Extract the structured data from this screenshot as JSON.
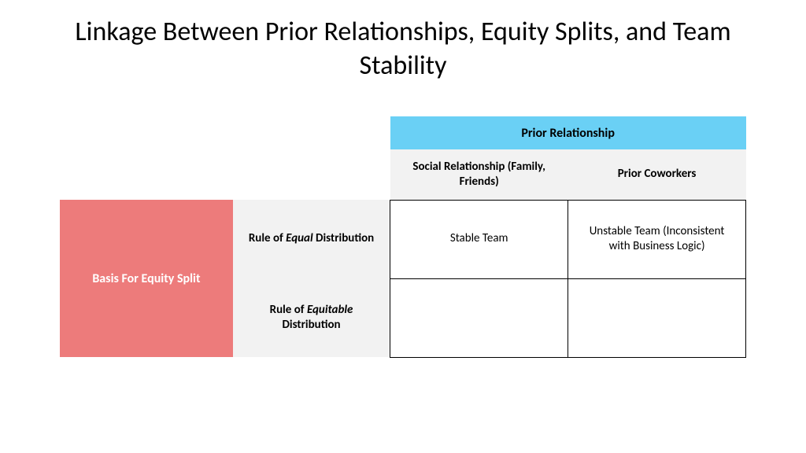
{
  "title": "Linkage Between Prior Relationships, Equity Splits, and Team Stability",
  "matrix": {
    "col_group_label": "Prior Relationship",
    "col_headers": [
      "Social Relationship (Family, Friends)",
      "Prior Coworkers"
    ],
    "row_group_label": "Basis For Equity Split",
    "row_headers": [
      {
        "prefix": "Rule of ",
        "italic": "Equal",
        "suffix": " Distribution"
      },
      {
        "prefix": "Rule of ",
        "italic": "Equitable",
        "suffix": " Distribution"
      }
    ],
    "cells": [
      [
        "Stable Team",
        "Unstable Team (Inconsistent with Business Logic)"
      ],
      [
        "",
        ""
      ]
    ],
    "colors": {
      "col_header_bg": "#6ad0f5",
      "sub_header_bg": "#f2f2f2",
      "row_header_bg": "#ed7b7b",
      "row_header_fg": "#ffffff",
      "cell_border": "#000000",
      "page_bg": "#ffffff",
      "text": "#000000"
    },
    "fontsizes": {
      "title": 34,
      "header": 16,
      "subheader": 15,
      "cell": 15
    }
  }
}
